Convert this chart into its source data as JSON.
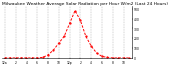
{
  "title": "Milwaukee Weather Average Solar Radiation per Hour W/m2 (Last 24 Hours)",
  "hours": [
    0,
    1,
    2,
    3,
    4,
    5,
    6,
    7,
    8,
    9,
    10,
    11,
    12,
    13,
    14,
    15,
    16,
    17,
    18,
    19,
    20,
    21,
    22,
    23
  ],
  "values": [
    0,
    0,
    0,
    0,
    0,
    0,
    0,
    5,
    30,
    80,
    150,
    220,
    350,
    480,
    380,
    220,
    120,
    50,
    15,
    5,
    0,
    0,
    0,
    0
  ],
  "line_color": "#ff0000",
  "bg_color": "#ffffff",
  "grid_color": "#888888",
  "ylim": [
    0,
    530
  ],
  "yticks": [
    0,
    100,
    200,
    300,
    400,
    500
  ],
  "xlim": [
    -0.5,
    23.5
  ],
  "xtick_positions": [
    0,
    2,
    4,
    6,
    8,
    10,
    12,
    14,
    16,
    18,
    20,
    22
  ],
  "xtick_labels": [
    "12a",
    "2",
    "4",
    "6",
    "8",
    "10",
    "12p",
    "2",
    "4",
    "6",
    "8",
    "10"
  ],
  "title_fontsize": 3.2,
  "tick_fontsize": 2.2
}
